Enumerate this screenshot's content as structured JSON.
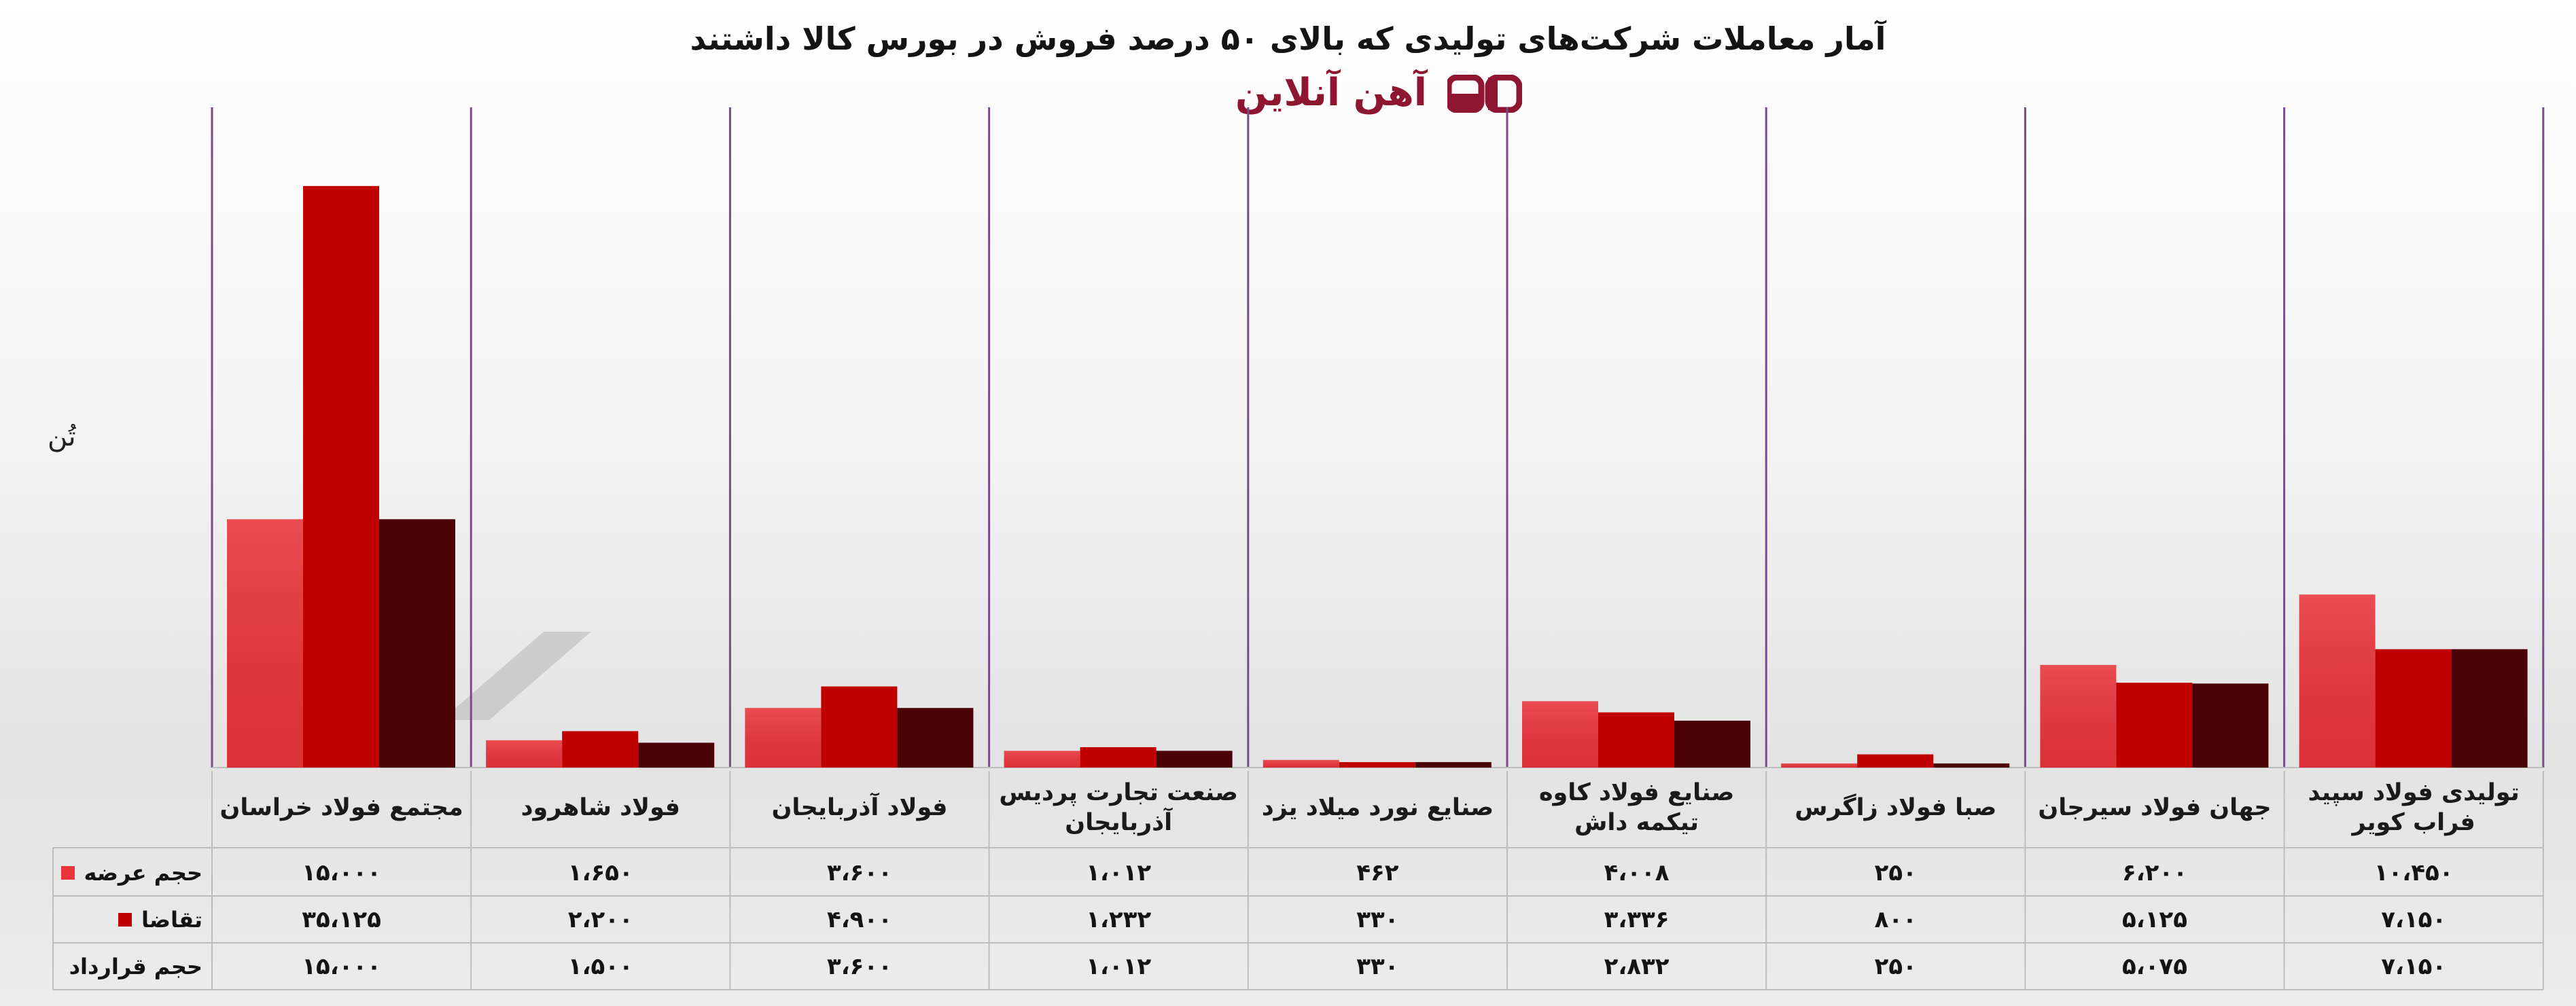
{
  "title": "آمار معاملات شرکت‌های تولیدی که بالای ۵۰ درصد فروش در بورس کالا داشتند",
  "logo_text": "آهن آنلاین",
  "unit_label": "تُن",
  "colors": {
    "supply": "#e8343a",
    "demand": "#c00000",
    "contract": "#4a0206",
    "divider": "#7a4a8c",
    "logo": "#8e1631"
  },
  "chart_data": {
    "type": "bar",
    "title": "آمار معاملات شرکت‌های تولیدی که بالای ۵۰ درصد فروش در بورس کالا داشتند",
    "ylabel": "تُن",
    "categories": [
      "مجتمع فولاد خراسان",
      "فولاد شاهرود",
      "فولاد آذربایجان",
      "صنعت تجارت پردیس آذربایجان",
      "صنایع نورد میلاد یزد",
      "صنایع فولاد کاوه تیکمه داش",
      "صبا فولاد زاگرس",
      "جهان فولاد سیرجان",
      "تولیدی فولاد سپید فراب کویر"
    ],
    "series": [
      {
        "name": "حجم عرضه",
        "values": [
          15000,
          1650,
          3600,
          1012,
          462,
          4008,
          250,
          6200,
          10450
        ],
        "labels": [
          "۱۵،۰۰۰",
          "۱،۶۵۰",
          "۳،۶۰۰",
          "۱،۰۱۲",
          "۴۶۲",
          "۴،۰۰۸",
          "۲۵۰",
          "۶،۲۰۰",
          "۱۰،۴۵۰"
        ]
      },
      {
        "name": "تقاضا",
        "values": [
          35125,
          2200,
          4900,
          1232,
          330,
          3336,
          800,
          5125,
          7150
        ],
        "labels": [
          "۳۵،۱۲۵",
          "۲،۲۰۰",
          "۴،۹۰۰",
          "۱،۲۳۲",
          "۳۳۰",
          "۳،۳۳۶",
          "۸۰۰",
          "۵،۱۲۵",
          "۷،۱۵۰"
        ]
      },
      {
        "name": "حجم قرارداد",
        "values": [
          15000,
          1500,
          3600,
          1012,
          330,
          2832,
          250,
          5075,
          7150
        ],
        "labels": [
          "۱۵،۰۰۰",
          "۱،۵۰۰",
          "۳،۶۰۰",
          "۱،۰۱۲",
          "۳۳۰",
          "۲،۸۳۲",
          "۲۵۰",
          "۵،۰۷۵",
          "۷،۱۵۰"
        ]
      }
    ],
    "ylim": [
      0,
      40000
    ],
    "grid": false,
    "legend": "data-table"
  }
}
